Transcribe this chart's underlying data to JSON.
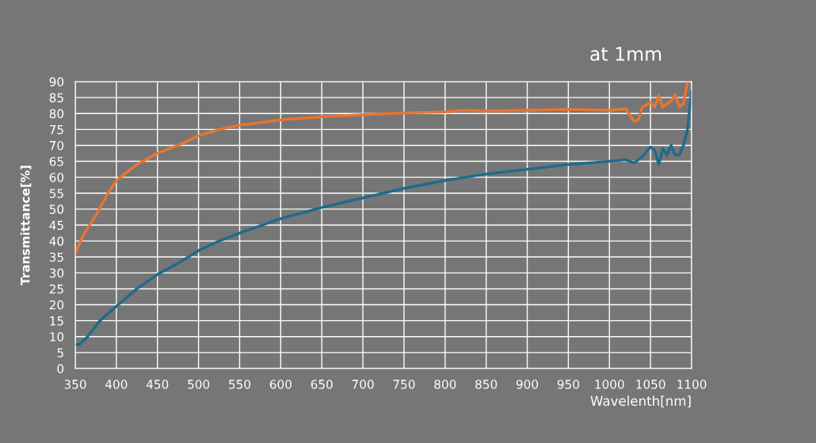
{
  "chart_data": {
    "type": "line",
    "title": "at 1mm",
    "xlabel": "Wavelenth[nm]",
    "ylabel": "Transmittance[%]",
    "xlim": [
      350,
      1100
    ],
    "xticks": [
      350,
      400,
      450,
      500,
      550,
      600,
      650,
      700,
      750,
      800,
      850,
      900,
      950,
      1000,
      1050,
      1100
    ],
    "ylim": [
      0,
      90
    ],
    "yticks": [
      0,
      5,
      10,
      15,
      20,
      25,
      30,
      35,
      40,
      45,
      50,
      55,
      60,
      65,
      70,
      75,
      80,
      85,
      90
    ],
    "grid": true,
    "marker": "none",
    "line_style": "solid",
    "series": [
      {
        "color": "#1f6b8e",
        "x": [
          350,
          355,
          365,
          380,
          400,
          425,
          450,
          475,
          500,
          525,
          550,
          600,
          650,
          700,
          750,
          800,
          850,
          900,
          950,
          1000,
          1020,
          1030,
          1040,
          1050,
          1055,
          1060,
          1065,
          1070,
          1075,
          1080,
          1085,
          1090,
          1095,
          1100
        ],
        "values": [
          7.5,
          7.5,
          10,
          15,
          19.5,
          25,
          29.5,
          33,
          37,
          40,
          42.5,
          47,
          50.5,
          53.5,
          56.5,
          59,
          61,
          62.5,
          64,
          65,
          65.5,
          64.5,
          66.5,
          69.5,
          68.5,
          64,
          69,
          67,
          70,
          67,
          67,
          70,
          75,
          87
        ]
      },
      {
        "color": "#e87532",
        "x": [
          350,
          360,
          375,
          390,
          400,
          425,
          450,
          475,
          500,
          525,
          550,
          600,
          650,
          700,
          750,
          800,
          820,
          850,
          900,
          950,
          1000,
          1020,
          1030,
          1035,
          1040,
          1050,
          1055,
          1060,
          1065,
          1075,
          1080,
          1085,
          1090,
          1095
        ],
        "values": [
          36,
          42,
          48,
          55,
          59,
          64,
          67.5,
          70,
          73,
          75,
          76.3,
          78,
          79,
          79.6,
          80.2,
          80.5,
          81,
          80.8,
          81,
          81.3,
          81,
          81.5,
          77.5,
          78,
          82,
          83.5,
          82,
          85.5,
          82,
          84,
          86,
          82,
          83,
          90
        ]
      }
    ]
  }
}
